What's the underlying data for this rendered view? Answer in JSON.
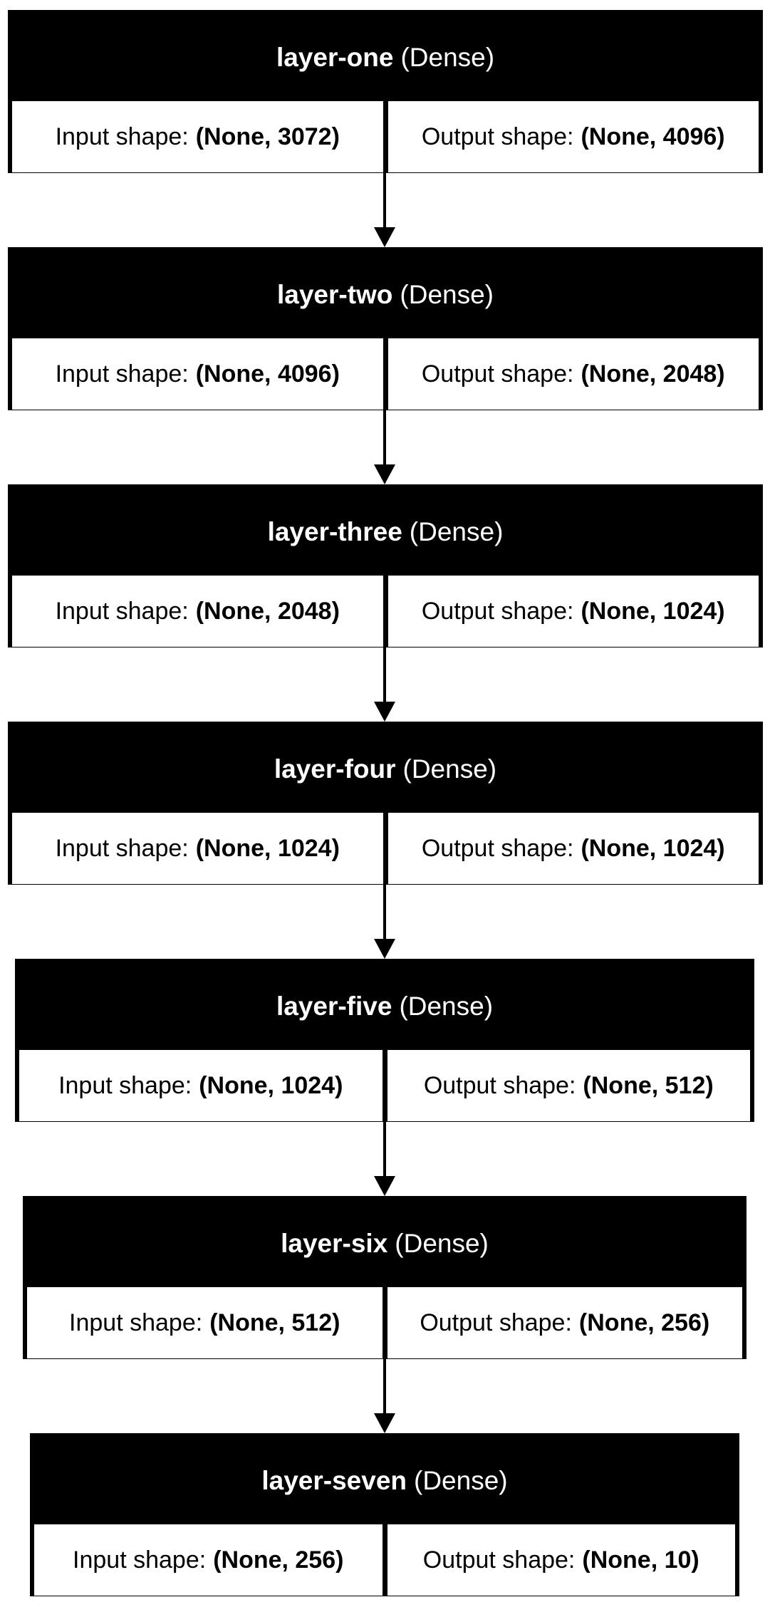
{
  "diagram": {
    "input_label": "Input shape:",
    "output_label": "Output shape:",
    "layers": [
      {
        "name": "layer-one",
        "type": "(Dense)",
        "input_shape": "(None, 3072)",
        "output_shape": "(None, 4096)"
      },
      {
        "name": "layer-two",
        "type": "(Dense)",
        "input_shape": "(None, 4096)",
        "output_shape": "(None, 2048)"
      },
      {
        "name": "layer-three",
        "type": "(Dense)",
        "input_shape": "(None, 2048)",
        "output_shape": "(None, 1024)"
      },
      {
        "name": "layer-four",
        "type": "(Dense)",
        "input_shape": "(None, 1024)",
        "output_shape": "(None, 1024)"
      },
      {
        "name": "layer-five",
        "type": "(Dense)",
        "input_shape": "(None, 1024)",
        "output_shape": "(None, 512)"
      },
      {
        "name": "layer-six",
        "type": "(Dense)",
        "input_shape": "(None, 512)",
        "output_shape": "(None, 256)"
      },
      {
        "name": "layer-seven",
        "type": "(Dense)",
        "input_shape": "(None, 256)",
        "output_shape": "(None, 10)"
      }
    ],
    "colors": {
      "node_fill": "#000000",
      "header_text": "#ffffff",
      "cell_fill": "#ffffff",
      "cell_text": "#000000",
      "arrow": "#000000"
    }
  }
}
